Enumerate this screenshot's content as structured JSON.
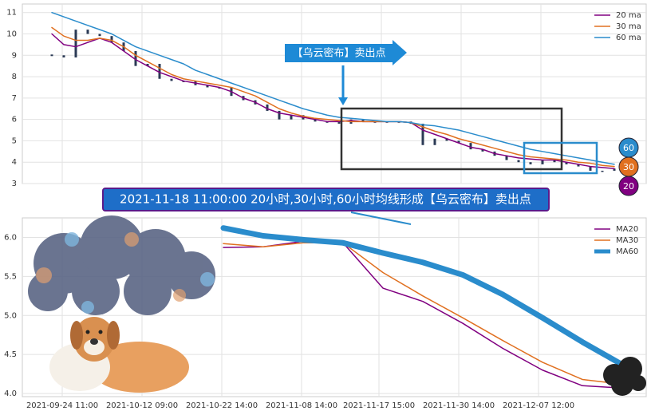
{
  "chart_data": [
    {
      "type": "candle-ma",
      "x": [
        -13,
        2,
        17,
        32,
        47,
        62,
        77,
        92,
        107,
        122,
        137,
        152,
        167,
        182,
        197,
        212,
        227,
        242,
        257,
        272,
        287,
        302,
        317,
        332,
        347,
        362,
        377,
        392,
        407,
        422,
        437,
        452,
        467,
        482,
        497,
        512,
        527,
        542,
        557,
        572,
        587,
        602,
        617,
        632,
        647,
        662,
        677,
        692
      ],
      "close": [
        9.0,
        8.9,
        10.2,
        10.0,
        9.9,
        9.6,
        9.2,
        8.5,
        8.6,
        7.9,
        7.8,
        7.8,
        7.6,
        7.5,
        7.5,
        7.1,
        6.9,
        6.7,
        6.4,
        6.0,
        6.2,
        6.0,
        5.9,
        5.9,
        5.8,
        6.0,
        5.9,
        5.9,
        5.9,
        5.9,
        5.8,
        4.8,
        5.1,
        5.0,
        4.9,
        4.6,
        4.5,
        4.3,
        4.1,
        4.0,
        3.9,
        4.1,
        4.0,
        3.9,
        3.8,
        3.6,
        3.6,
        3.7
      ],
      "series": [
        {
          "name": "20 ma",
          "color": "#800080",
          "values": [
            10,
            9.5,
            9.4,
            9.6,
            9.8,
            9.6,
            9.2,
            8.8,
            8.5,
            8.2,
            8.0,
            7.8,
            7.7,
            7.6,
            7.5,
            7.3,
            7.0,
            6.8,
            6.5,
            6.3,
            6.2,
            6.1,
            6.0,
            5.9,
            5.9,
            5.95,
            5.9,
            5.9,
            5.9,
            5.9,
            5.85,
            5.5,
            5.3,
            5.1,
            4.9,
            4.7,
            4.6,
            4.4,
            4.3,
            4.2,
            4.15,
            4.1,
            4.1,
            4.0,
            3.9,
            3.8,
            3.75,
            3.7
          ]
        },
        {
          "name": "30 ma",
          "color": "#e07020",
          "values": [
            10.3,
            9.9,
            9.7,
            9.7,
            9.8,
            9.7,
            9.4,
            9.0,
            8.7,
            8.4,
            8.1,
            7.9,
            7.8,
            7.7,
            7.6,
            7.5,
            7.3,
            7.1,
            6.8,
            6.5,
            6.3,
            6.15,
            6.05,
            6.0,
            5.95,
            5.9,
            5.9,
            5.9,
            5.9,
            5.9,
            5.85,
            5.65,
            5.45,
            5.3,
            5.1,
            4.95,
            4.8,
            4.65,
            4.5,
            4.35,
            4.25,
            4.2,
            4.15,
            4.1,
            4.0,
            3.95,
            3.85,
            3.8
          ]
        },
        {
          "name": "60 ma",
          "color": "#2a8ccc",
          "values": [
            11,
            10.8,
            10.6,
            10.4,
            10.2,
            10.0,
            9.7,
            9.4,
            9.2,
            9.0,
            8.8,
            8.6,
            8.3,
            8.1,
            7.9,
            7.7,
            7.5,
            7.3,
            7.1,
            6.9,
            6.7,
            6.5,
            6.35,
            6.2,
            6.1,
            6.05,
            6.0,
            5.95,
            5.9,
            5.9,
            5.85,
            5.75,
            5.7,
            5.6,
            5.5,
            5.35,
            5.2,
            5.05,
            4.9,
            4.75,
            4.6,
            4.5,
            4.4,
            4.3,
            4.2,
            4.1,
            4.0,
            3.9
          ]
        }
      ],
      "xlim": [
        -50,
        732
      ],
      "xticks": [
        0,
        100,
        200,
        300,
        400,
        500,
        600
      ],
      "ylim": [
        3,
        11.4
      ],
      "yticks": [
        3,
        4,
        5,
        6,
        7,
        8,
        9,
        10,
        11
      ],
      "grid": true,
      "annotations": [
        "【乌云密布】卖出点",
        "2021-11-18 11:00:00 20小时,30小时,60小时均线形成【乌云密布】卖出点"
      ],
      "badges": [
        "60",
        "30",
        "20"
      ]
    },
    {
      "type": "line",
      "x": [
        202,
        252,
        302,
        352,
        402,
        452,
        502,
        552,
        602,
        652,
        702
      ],
      "series": [
        {
          "name": "MA20",
          "color": "#800080",
          "width": 1.5,
          "values": [
            5.87,
            5.88,
            5.95,
            5.93,
            5.35,
            5.18,
            4.9,
            4.58,
            4.3,
            4.1,
            4.07
          ]
        },
        {
          "name": "MA30",
          "color": "#e07020",
          "width": 1.5,
          "values": [
            5.92,
            5.88,
            5.93,
            5.93,
            5.55,
            5.25,
            4.97,
            4.68,
            4.4,
            4.18,
            4.12
          ]
        },
        {
          "name": "MA60",
          "color": "#2a8ccc",
          "width": 7,
          "values": [
            6.12,
            6.02,
            5.97,
            5.93,
            5.8,
            5.68,
            5.52,
            5.27,
            4.97,
            4.66,
            4.37
          ]
        }
      ],
      "xlim": [
        -50,
        732
      ],
      "xticks": [
        {
          "value": 0,
          "label": "2021-09-24 11:00"
        },
        {
          "value": 100,
          "label": "2021-10-12 09:00"
        },
        {
          "value": 200,
          "label": "2021-10-22 14:00"
        },
        {
          "value": 300,
          "label": "2021-11-08 14:00"
        },
        {
          "value": 397,
          "label": "2021-11-17 15:00"
        },
        {
          "value": 497,
          "label": "2021-11-30 14:00"
        },
        {
          "value": 597,
          "label": "2021-12-07 12:00"
        }
      ],
      "ylim": [
        3.96,
        6.25
      ],
      "yticks": [
        {
          "value": 4,
          "label": "4.0"
        },
        4.5,
        {
          "value": 5,
          "label": "5.0"
        },
        5.5,
        {
          "value": 6,
          "label": "6.0"
        }
      ],
      "grid": true
    }
  ]
}
